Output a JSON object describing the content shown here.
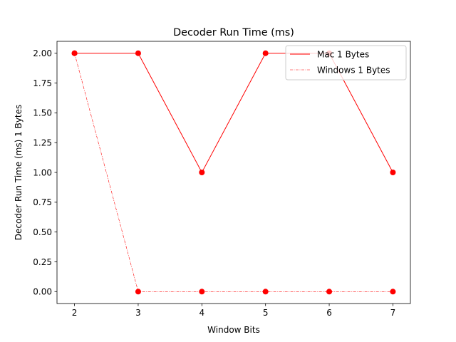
{
  "chart_data": {
    "type": "line",
    "title": "Decoder Run Time (ms)",
    "xlabel": "Window Bits",
    "ylabel": "Decoder Run Time (ms)  1 Bytes",
    "x": [
      2,
      3,
      4,
      5,
      6,
      7
    ],
    "xlim": [
      1.725,
      7.275
    ],
    "ylim": [
      -0.1,
      2.1
    ],
    "xticks": [
      "2",
      "3",
      "4",
      "5",
      "6",
      "7"
    ],
    "yticks": [
      "0.00",
      "0.25",
      "0.50",
      "0.75",
      "1.00",
      "1.25",
      "1.50",
      "1.75",
      "2.00"
    ],
    "grid": false,
    "legend_position": "top-right",
    "series": [
      {
        "name": "Mac 1 Bytes",
        "values": [
          2,
          2,
          1,
          2,
          2,
          1
        ],
        "color": "#ff0000",
        "style": "solid"
      },
      {
        "name": "Windows 1 Bytes",
        "values": [
          2,
          0,
          0,
          0,
          0,
          0
        ],
        "color": "#ff0000",
        "style": "dashdot"
      }
    ]
  }
}
